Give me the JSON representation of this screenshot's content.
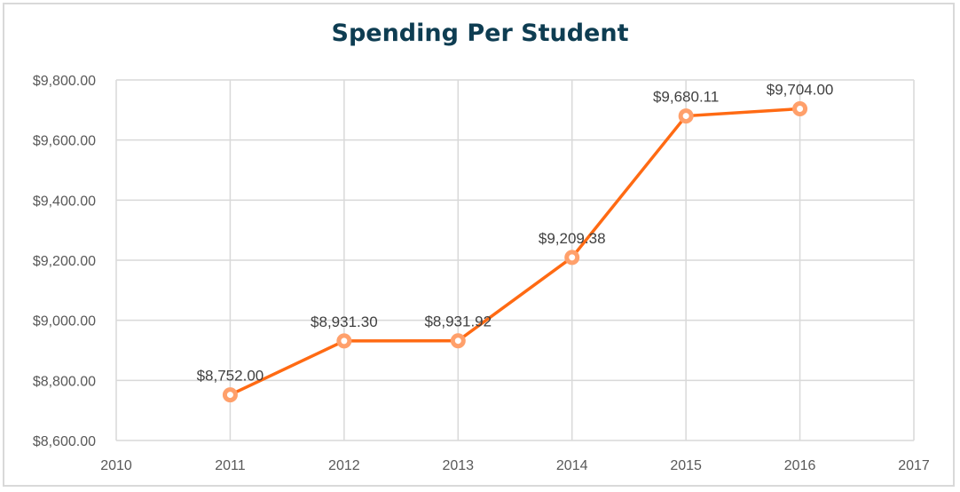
{
  "chart_data": {
    "type": "line",
    "title": "Spending Per Student",
    "x": [
      2011,
      2012,
      2013,
      2014,
      2015,
      2016
    ],
    "values": [
      8752.0,
      8931.3,
      8931.92,
      9209.38,
      9680.11,
      9704.0
    ],
    "data_labels": [
      "$8,752.00",
      "$8,931.30",
      "$8,931.92",
      "$9,209.38",
      "$9,680.11",
      "$9,704.00"
    ],
    "xlim": [
      2010,
      2017
    ],
    "xticks": [
      "2010",
      "2011",
      "2012",
      "2013",
      "2014",
      "2015",
      "2016",
      "2017"
    ],
    "ylim": [
      8600,
      9800
    ],
    "yticks": [
      "$8,600.00",
      "$8,800.00",
      "$9,000.00",
      "$9,200.00",
      "$9,400.00",
      "$9,600.00",
      "$9,800.00"
    ],
    "grid": true,
    "line_color": "#ff6a13",
    "marker_color": "#ffa06b",
    "title_color": "#0e3d52"
  }
}
